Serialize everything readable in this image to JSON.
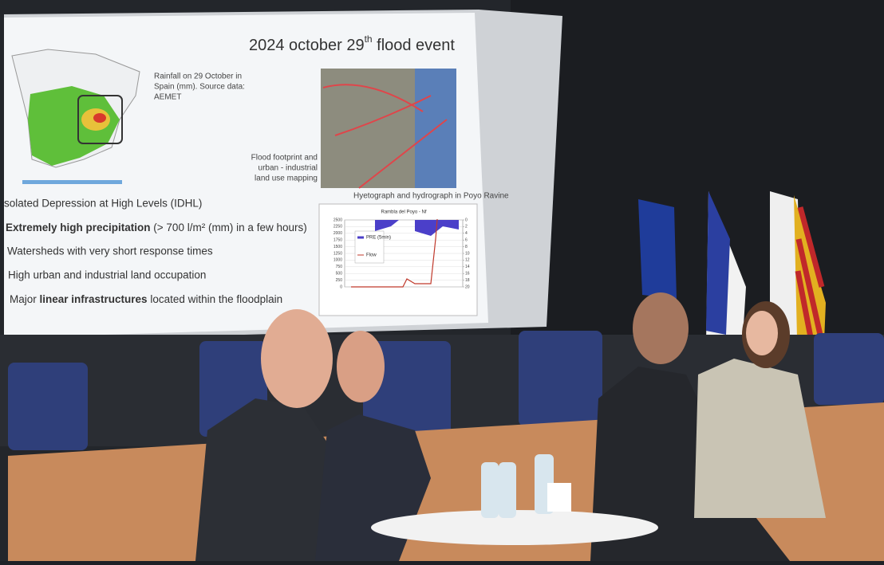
{
  "slide": {
    "title": {
      "main": "2024 october 29",
      "sup": "th",
      "rest": " flood event"
    },
    "map_caption": [
      "Rainfall on 29 October in",
      "Spain (mm). Source data:",
      "AEMET"
    ],
    "footprint_caption": [
      "Flood footprint and",
      "urban - industrial",
      "land use mapping"
    ],
    "chart_caption": "Hyetograph and hydrograph in Poyo Ravine",
    "bullets": [
      "solated Depression at High Levels (IDHL)",
      {
        "bold": "Extremely high precipitation",
        "rest": " (> 700 l/m² (mm) in a few hours)"
      },
      "Watersheds with very short response times",
      "High urban and industrial land occupation",
      {
        "pre": "Major ",
        "bold": "linear infrastructures",
        "rest": " located within the floodplain"
      }
    ],
    "chart": {
      "title": "Rambla del Poyo - Nf",
      "legend": [
        "PRE (5min)",
        "Flow"
      ],
      "yticks": [
        2500,
        2250,
        2000,
        1750,
        1500,
        1250,
        1000,
        750,
        500,
        250,
        0
      ],
      "y2ticks": [
        0,
        2,
        4,
        6,
        8,
        10,
        12,
        14,
        16,
        18,
        20
      ]
    }
  }
}
